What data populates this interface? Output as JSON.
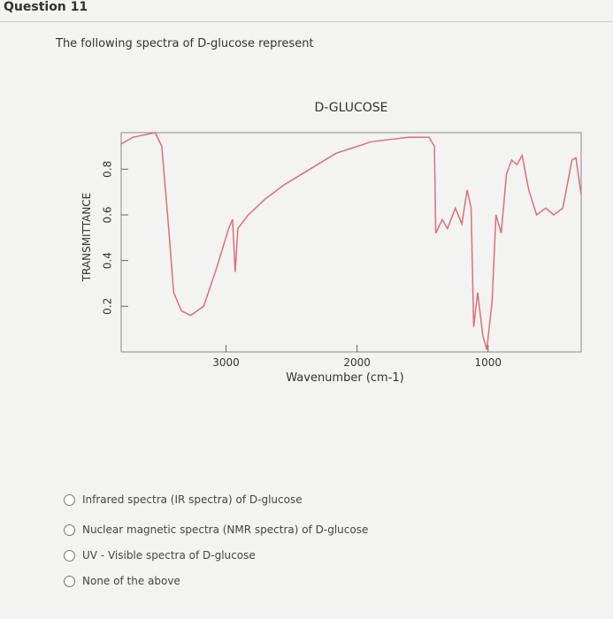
{
  "question": {
    "title": "Question 11",
    "prompt": "The following spectra of D-glucose represent"
  },
  "chart_data": {
    "type": "line",
    "title": "D-GLUCOSE",
    "x_label": "Wavenumber (cm-1)",
    "y_label": "TRANSMITTANCE",
    "x": [
      3800,
      3710,
      3540,
      3490,
      3440,
      3400,
      3340,
      3270,
      3170,
      3070,
      2980,
      2950,
      2930,
      2910,
      2830,
      2700,
      2560,
      2360,
      2160,
      1890,
      1610,
      1450,
      1410,
      1400,
      1350,
      1310,
      1250,
      1200,
      1160,
      1130,
      1110,
      1080,
      1040,
      1010,
      970,
      940,
      900,
      860,
      820,
      780,
      740,
      690,
      630,
      560,
      500,
      430,
      360,
      330,
      290
    ],
    "series": [
      {
        "name": "D-GLUCOSE",
        "color": "#d9707a",
        "values": [
          0.91,
          0.94,
          0.96,
          0.9,
          0.56,
          0.26,
          0.18,
          0.16,
          0.2,
          0.37,
          0.54,
          0.58,
          0.35,
          0.54,
          0.6,
          0.67,
          0.73,
          0.8,
          0.87,
          0.92,
          0.94,
          0.94,
          0.9,
          0.52,
          0.58,
          0.54,
          0.63,
          0.56,
          0.71,
          0.63,
          0.11,
          0.26,
          0.07,
          0.01,
          0.22,
          0.6,
          0.52,
          0.78,
          0.84,
          0.82,
          0.86,
          0.71,
          0.6,
          0.63,
          0.6,
          0.63,
          0.84,
          0.85,
          0.69
        ]
      }
    ],
    "xlim": [
      3800,
      290
    ],
    "xticks": [
      3000,
      2000,
      1000
    ],
    "ylim": [
      0,
      0.96
    ],
    "yticks": [
      0.2,
      0.4,
      0.6,
      0.8
    ]
  },
  "options": [
    "Infrared spectra (IR spectra) of D-glucose",
    "Nuclear magnetic spectra (NMR spectra) of D-glucose",
    "UV - Visible  spectra  of D-glucose",
    "None of the above"
  ]
}
